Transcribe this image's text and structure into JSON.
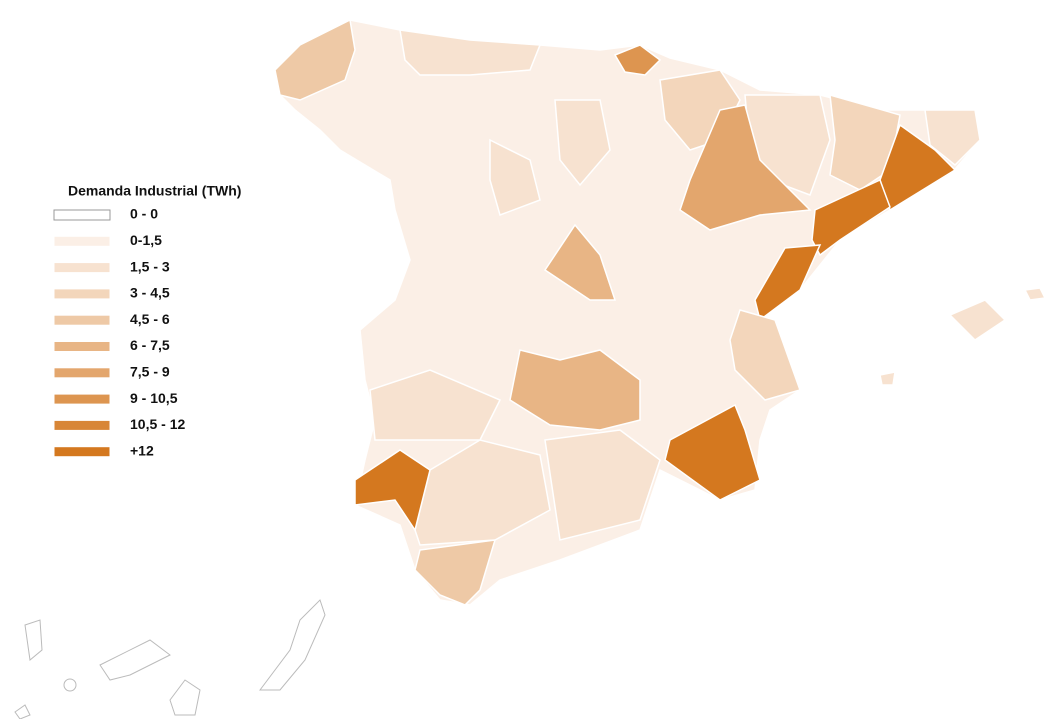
{
  "legend": {
    "title": "Demanda Industrial (TWh)",
    "items": [
      {
        "label": "0 - 0",
        "color": "#ffffff"
      },
      {
        "label": "0-1,5",
        "color": "#fbefe6"
      },
      {
        "label": "1,5 - 3",
        "color": "#f7e2d0"
      },
      {
        "label": "3 - 4,5",
        "color": "#f3d6bb"
      },
      {
        "label": "4,5 - 6",
        "color": "#eec9a6"
      },
      {
        "label": "6 - 7,5",
        "color": "#e8b585"
      },
      {
        "label": "7,5 - 9",
        "color": "#e3a66d"
      },
      {
        "label": "9 - 10,5",
        "color": "#dd9550"
      },
      {
        "label": "10,5 - 12",
        "color": "#d88637"
      },
      {
        "label": "+12",
        "color": "#d4781f"
      }
    ]
  }
}
